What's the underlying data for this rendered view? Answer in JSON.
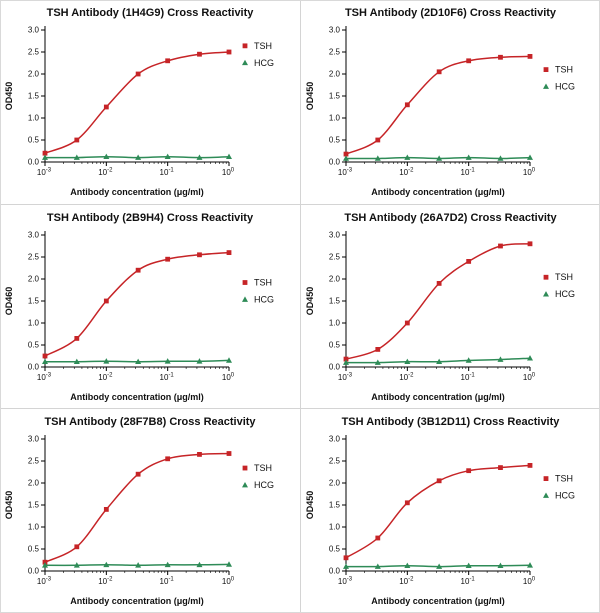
{
  "chart_data": [
    {
      "type": "line",
      "title": "TSH Antibody (1H4G9) Cross Reactivity",
      "xlabel": "Antibody concentration (μg/ml)",
      "ylabel": "OD450",
      "x_scale": "log",
      "xlim": [
        0.001,
        1
      ],
      "ylim": [
        0,
        3
      ],
      "yticks": [
        0,
        0.5,
        1.0,
        1.5,
        2.0,
        2.5,
        3.0
      ],
      "x_tick_exponents": [
        -3,
        -2,
        -1,
        0
      ],
      "legend_position": "right",
      "legend_y_frac": 0.12,
      "x": [
        0.001,
        0.0033,
        0.01,
        0.033,
        0.1,
        0.33,
        1
      ],
      "series": [
        {
          "name": "TSH",
          "color": "#c62427",
          "marker": "square",
          "values": [
            0.2,
            0.5,
            1.25,
            2.0,
            2.3,
            2.45,
            2.5
          ]
        },
        {
          "name": "HCG",
          "color": "#2e8b57",
          "marker": "triangle",
          "values": [
            0.1,
            0.1,
            0.12,
            0.1,
            0.12,
            0.1,
            0.12
          ]
        }
      ]
    },
    {
      "type": "line",
      "title": "TSH Antibody (2D10F6) Cross Reactivity",
      "xlabel": "Antibody concentration (μg/ml)",
      "ylabel": "OD450",
      "x_scale": "log",
      "xlim": [
        0.001,
        1
      ],
      "ylim": [
        0,
        3
      ],
      "yticks": [
        0,
        0.5,
        1.0,
        1.5,
        2.0,
        2.5,
        3.0
      ],
      "x_tick_exponents": [
        -3,
        -2,
        -1,
        0
      ],
      "legend_position": "right",
      "legend_y_frac": 0.3,
      "x": [
        0.001,
        0.0033,
        0.01,
        0.033,
        0.1,
        0.33,
        1
      ],
      "series": [
        {
          "name": "TSH",
          "color": "#c62427",
          "marker": "square",
          "values": [
            0.18,
            0.5,
            1.3,
            2.05,
            2.3,
            2.38,
            2.4
          ]
        },
        {
          "name": "HCG",
          "color": "#2e8b57",
          "marker": "triangle",
          "values": [
            0.08,
            0.08,
            0.1,
            0.08,
            0.1,
            0.08,
            0.1
          ]
        }
      ]
    },
    {
      "type": "line",
      "title": "TSH Antibody (2B9H4) Cross Reactivity",
      "xlabel": "Antibody concentration (μg/ml)",
      "ylabel": "OD460",
      "x_scale": "log",
      "xlim": [
        0.001,
        1
      ],
      "ylim": [
        0,
        3
      ],
      "yticks": [
        0,
        0.5,
        1.0,
        1.5,
        2.0,
        2.5,
        3.0
      ],
      "x_tick_exponents": [
        -3,
        -2,
        -1,
        0
      ],
      "legend_position": "right",
      "legend_y_frac": 0.36,
      "x": [
        0.001,
        0.0033,
        0.01,
        0.033,
        0.1,
        0.33,
        1
      ],
      "series": [
        {
          "name": "TSH",
          "color": "#c62427",
          "marker": "square",
          "values": [
            0.25,
            0.65,
            1.5,
            2.2,
            2.45,
            2.55,
            2.6
          ]
        },
        {
          "name": "HCG",
          "color": "#2e8b57",
          "marker": "triangle",
          "values": [
            0.12,
            0.12,
            0.13,
            0.12,
            0.13,
            0.13,
            0.15
          ]
        }
      ]
    },
    {
      "type": "line",
      "title": "TSH Antibody (26A7D2) Cross Reactivity",
      "xlabel": "Antibody concentration (μg/ml)",
      "ylabel": "OD450",
      "x_scale": "log",
      "xlim": [
        0.001,
        1
      ],
      "ylim": [
        0,
        3
      ],
      "yticks": [
        0,
        0.5,
        1.0,
        1.5,
        2.0,
        2.5,
        3.0
      ],
      "x_tick_exponents": [
        -3,
        -2,
        -1,
        0
      ],
      "legend_position": "right",
      "legend_y_frac": 0.32,
      "x": [
        0.001,
        0.0033,
        0.01,
        0.033,
        0.1,
        0.33,
        1
      ],
      "series": [
        {
          "name": "TSH",
          "color": "#c62427",
          "marker": "square",
          "values": [
            0.18,
            0.4,
            1.0,
            1.9,
            2.4,
            2.75,
            2.8
          ]
        },
        {
          "name": "HCG",
          "color": "#2e8b57",
          "marker": "triangle",
          "values": [
            0.1,
            0.1,
            0.12,
            0.12,
            0.15,
            0.17,
            0.2
          ]
        }
      ]
    },
    {
      "type": "line",
      "title": "TSH Antibody (28F7B8) Cross Reactivity",
      "xlabel": "Antibody concentration (μg/ml)",
      "ylabel": "OD450",
      "x_scale": "log",
      "xlim": [
        0.001,
        1
      ],
      "ylim": [
        0,
        3
      ],
      "yticks": [
        0,
        0.5,
        1.0,
        1.5,
        2.0,
        2.5,
        3.0
      ],
      "x_tick_exponents": [
        -3,
        -2,
        -1,
        0
      ],
      "legend_position": "right",
      "legend_y_frac": 0.22,
      "x": [
        0.001,
        0.0033,
        0.01,
        0.033,
        0.1,
        0.33,
        1
      ],
      "series": [
        {
          "name": "TSH",
          "color": "#c62427",
          "marker": "square",
          "values": [
            0.2,
            0.55,
            1.4,
            2.2,
            2.55,
            2.65,
            2.67
          ]
        },
        {
          "name": "HCG",
          "color": "#2e8b57",
          "marker": "triangle",
          "values": [
            0.13,
            0.13,
            0.14,
            0.13,
            0.14,
            0.14,
            0.15
          ]
        }
      ]
    },
    {
      "type": "line",
      "title": "TSH Antibody (3B12D11) Cross Reactivity",
      "xlabel": "Antibody concentration (μg/ml)",
      "ylabel": "OD450",
      "x_scale": "log",
      "xlim": [
        0.001,
        1
      ],
      "ylim": [
        0,
        3
      ],
      "yticks": [
        0,
        0.5,
        1.0,
        1.5,
        2.0,
        2.5,
        3.0
      ],
      "x_tick_exponents": [
        -3,
        -2,
        -1,
        0
      ],
      "legend_position": "right",
      "legend_y_frac": 0.3,
      "x": [
        0.001,
        0.0033,
        0.01,
        0.033,
        0.1,
        0.33,
        1
      ],
      "series": [
        {
          "name": "TSH",
          "color": "#c62427",
          "marker": "square",
          "values": [
            0.3,
            0.75,
            1.55,
            2.05,
            2.28,
            2.35,
            2.4
          ]
        },
        {
          "name": "HCG",
          "color": "#2e8b57",
          "marker": "triangle",
          "values": [
            0.1,
            0.1,
            0.12,
            0.1,
            0.12,
            0.12,
            0.13
          ]
        }
      ]
    }
  ]
}
